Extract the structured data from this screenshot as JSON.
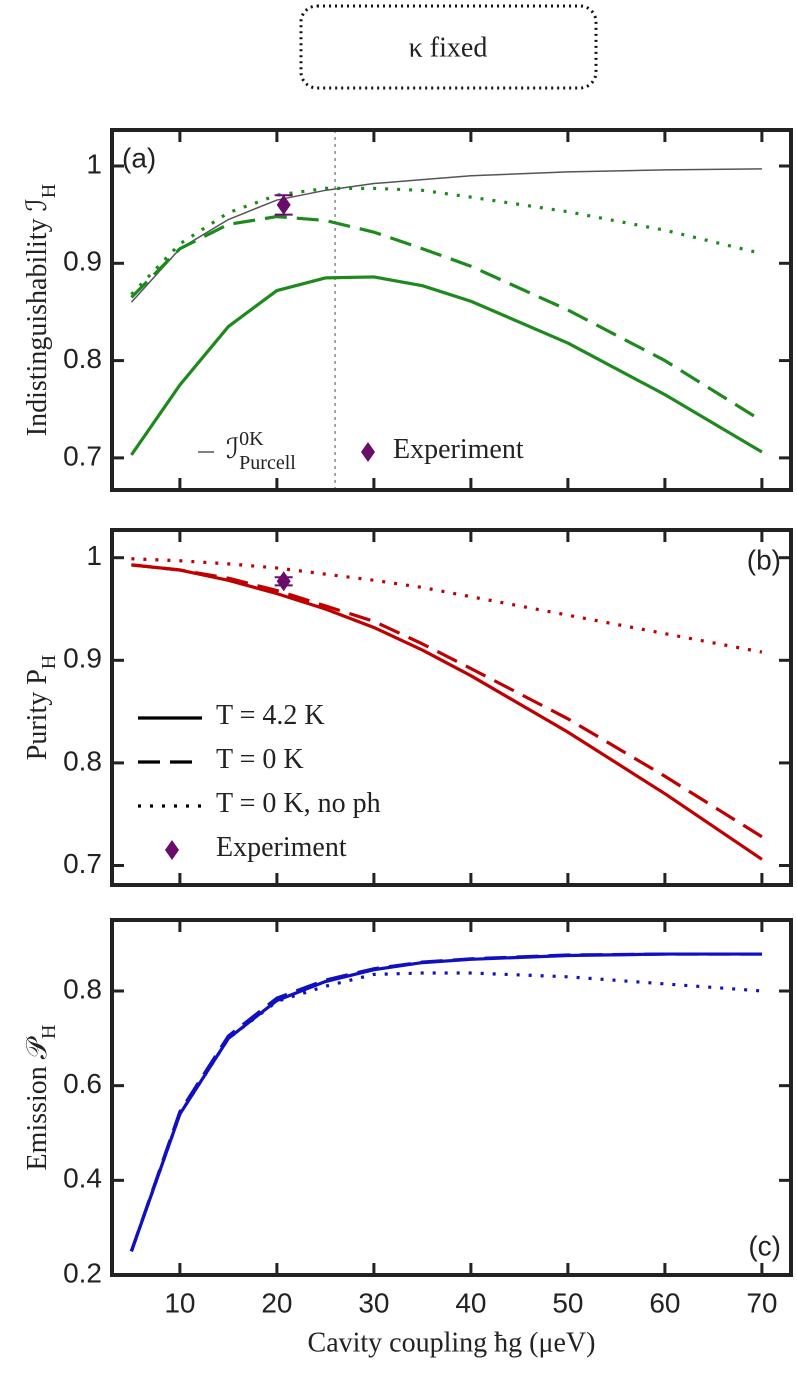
{
  "header": {
    "text": "κ fixed"
  },
  "chart_data": [
    {
      "type": "line",
      "panel_label": "(a)",
      "ylabel": {
        "text": "Indistinguishability ℐ",
        "sub": "H"
      },
      "x": [
        5,
        10,
        15,
        20,
        25,
        30,
        35,
        40,
        50,
        60,
        70
      ],
      "xlim": [
        3,
        73
      ],
      "ylim": [
        0.667,
        1.037
      ],
      "xticks": [
        10,
        20,
        30,
        40,
        50,
        60,
        70
      ],
      "xtick_labels": false,
      "yticks": [
        0.7,
        0.8,
        0.9,
        1
      ],
      "vline": 26,
      "series": [
        {
          "name": {
            "text": "ℐ",
            "sup": "0K",
            "sub": "Purcell"
          },
          "color": "#555555",
          "dash": "thin",
          "values": [
            0.86,
            0.915,
            0.945,
            0.965,
            0.975,
            0.982,
            0.986,
            0.99,
            0.994,
            0.996,
            0.997
          ]
        },
        {
          "color": "#1e8a1e",
          "dash": "solid",
          "values": [
            0.703,
            0.775,
            0.835,
            0.872,
            0.885,
            0.886,
            0.877,
            0.861,
            0.818,
            0.765,
            0.706
          ]
        },
        {
          "color": "#1e8a1e",
          "dash": "dashed",
          "values": [
            0.865,
            0.915,
            0.94,
            0.948,
            0.944,
            0.932,
            0.915,
            0.897,
            0.852,
            0.8,
            0.738
          ]
        },
        {
          "color": "#1e8a1e",
          "dash": "dotted",
          "values": [
            0.868,
            0.92,
            0.952,
            0.97,
            0.977,
            0.977,
            0.975,
            0.968,
            0.953,
            0.934,
            0.91
          ]
        }
      ],
      "points": {
        "name": {
          "text": "Experiment"
        },
        "color": "#6a0d6a",
        "x": [
          20.7
        ],
        "values": [
          0.96
        ],
        "errors": [
          0.01
        ]
      }
    },
    {
      "type": "line",
      "panel_label": "(b)",
      "ylabel": {
        "text": "Purity P",
        "sub": "H"
      },
      "x": [
        5,
        10,
        15,
        20,
        25,
        30,
        35,
        40,
        50,
        60,
        70
      ],
      "xlim": [
        3,
        73
      ],
      "ylim": [
        0.681,
        1.027
      ],
      "xticks": [
        10,
        20,
        30,
        40,
        50,
        60,
        70
      ],
      "xtick_labels": false,
      "yticks": [
        0.7,
        0.8,
        0.9,
        1
      ],
      "legend_color": "#000000",
      "series": [
        {
          "name": {
            "text": "T = 4.2 K"
          },
          "color": "#c00000",
          "dash": "solid",
          "values": [
            0.993,
            0.988,
            0.978,
            0.965,
            0.95,
            0.932,
            0.91,
            0.885,
            0.83,
            0.77,
            0.706
          ]
        },
        {
          "name": {
            "text": "T = 0 K"
          },
          "color": "#c00000",
          "dash": "dashed",
          "values": [
            0.993,
            0.988,
            0.98,
            0.968,
            0.953,
            0.938,
            0.916,
            0.892,
            0.843,
            0.787,
            0.728
          ]
        },
        {
          "name": {
            "text": "T = 0 K, no ph"
          },
          "color": "#c00000",
          "dash": "dotted",
          "values": [
            0.999,
            0.997,
            0.994,
            0.99,
            0.984,
            0.978,
            0.971,
            0.962,
            0.944,
            0.926,
            0.908
          ]
        }
      ],
      "points": {
        "name": {
          "text": "Experiment"
        },
        "color": "#6a0d6a",
        "x": [
          20.7
        ],
        "values": [
          0.977
        ],
        "errors": [
          0.004
        ]
      }
    },
    {
      "type": "line",
      "panel_label": "(c)",
      "ylabel": {
        "text": "Emission 𝒫",
        "sub": "H"
      },
      "xlabel": "Cavity coupling ħg (μeV)",
      "x": [
        5,
        10,
        15,
        20,
        25,
        30,
        35,
        40,
        50,
        60,
        70
      ],
      "xlim": [
        3,
        73
      ],
      "ylim": [
        0.2,
        0.95
      ],
      "xticks": [
        10,
        20,
        30,
        40,
        50,
        60,
        70
      ],
      "xtick_labels": true,
      "yticks": [
        0.2,
        0.4,
        0.6,
        0.8
      ],
      "series": [
        {
          "color": "#1010c0",
          "dash": "solid",
          "values": [
            0.25,
            0.54,
            0.7,
            0.78,
            0.82,
            0.845,
            0.86,
            0.867,
            0.875,
            0.878,
            0.878
          ]
        },
        {
          "color": "#1010c0",
          "dash": "dashed",
          "values": [
            0.25,
            0.545,
            0.705,
            0.785,
            0.823,
            0.847,
            0.861,
            0.868,
            0.876,
            0.878,
            0.878
          ]
        },
        {
          "color": "#1010c0",
          "dash": "dotted",
          "values": [
            0.25,
            0.54,
            0.7,
            0.778,
            0.81,
            0.835,
            0.838,
            0.838,
            0.83,
            0.815,
            0.8
          ]
        }
      ]
    }
  ]
}
